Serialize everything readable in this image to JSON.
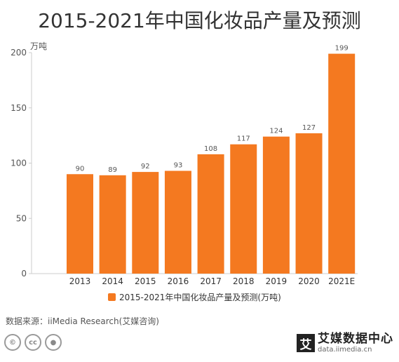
{
  "title": "2015-2021年中国化妆品产量及预测",
  "source": "数据来源：iiMedia Research(艾媒咨询)",
  "brand": {
    "mark": "艾",
    "name": "艾媒数据中心",
    "url": "data.iimedia.cn"
  },
  "license_icons": [
    "copyright-icon",
    "cc-icon",
    "attribution-icon"
  ],
  "colors": {
    "bar": "#F47920",
    "axis": "#cccccc",
    "label": "#555555",
    "title": "#333333"
  },
  "chart_data": {
    "type": "bar",
    "title": "2015-2021年中国化妆品产量及预测",
    "unit_label": "万吨",
    "categories": [
      "2013",
      "2014",
      "2015",
      "2016",
      "2017",
      "2018",
      "2019",
      "2020",
      "2021E"
    ],
    "series": [
      {
        "name": "2015-2021年中国化妆品产量及预测(万吨)",
        "values": [
          90,
          89,
          92,
          93,
          108,
          117,
          124,
          127,
          199
        ]
      }
    ],
    "ylim": [
      0,
      200
    ],
    "yticks": [
      0,
      50,
      100,
      150,
      200
    ],
    "grid": false,
    "legend_position": "bottom-center"
  }
}
